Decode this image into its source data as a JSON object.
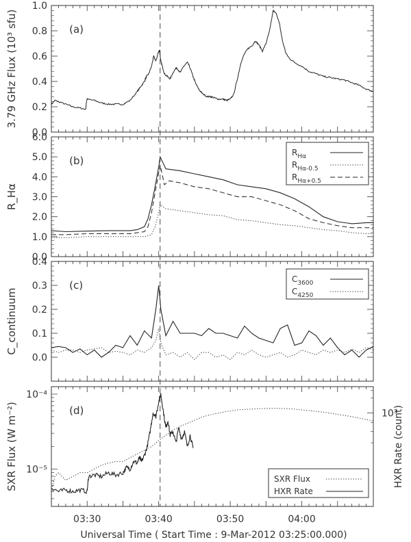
{
  "xaxis": {
    "ticks": [
      {
        "t": 5,
        "label": "03:30"
      },
      {
        "t": 15,
        "label": "03:40"
      },
      {
        "t": 25,
        "label": "03:50"
      },
      {
        "t": 35,
        "label": "04:00"
      }
    ],
    "xlim": [
      0,
      45
    ],
    "label": "Universal Time ( Start Time : 9-Mar-2012 03:25:00.000)"
  },
  "event_line_t": 15.2,
  "chart_data": [
    {
      "panel": "(a)",
      "type": "line",
      "ylabel": "3.79 GHz Flux (10³ sfu)",
      "ylim": [
        0,
        1.0
      ],
      "yticks": [
        "0.0",
        "0.2",
        "0.4",
        "0.6",
        "0.8",
        "1.0"
      ],
      "series": [
        {
          "x": [
            0,
            0.5,
            1,
            2,
            3,
            4,
            4.8,
            4.9,
            5,
            6,
            7,
            8,
            9,
            10,
            11,
            12,
            12.5,
            13,
            13.3,
            13.6,
            14,
            14.3,
            14.6,
            14.9,
            15.1,
            15.3,
            15.5,
            15.8,
            16.2,
            16.6,
            17,
            17.5,
            18,
            18.5,
            19,
            19.3,
            19.8,
            20.2,
            20.7,
            21.2,
            21.8,
            22.3,
            22.8,
            23.3,
            24,
            24.5,
            25,
            25.5,
            26,
            26.5,
            27,
            27.5,
            28,
            28.5,
            29,
            29.5,
            30,
            30.5,
            31,
            31.5,
            31.9,
            32.3,
            32.8,
            33.3,
            34,
            35,
            36,
            37,
            38,
            39,
            40,
            41,
            42,
            43,
            44,
            45
          ],
          "values": [
            0.22,
            0.25,
            0.24,
            0.22,
            0.2,
            0.19,
            0.18,
            0.24,
            0.26,
            0.25,
            0.23,
            0.22,
            0.22,
            0.22,
            0.25,
            0.32,
            0.36,
            0.4,
            0.44,
            0.46,
            0.52,
            0.6,
            0.56,
            0.62,
            0.65,
            0.56,
            0.52,
            0.46,
            0.44,
            0.42,
            0.47,
            0.51,
            0.47,
            0.52,
            0.55,
            0.52,
            0.44,
            0.38,
            0.33,
            0.3,
            0.28,
            0.28,
            0.27,
            0.26,
            0.26,
            0.25,
            0.26,
            0.3,
            0.42,
            0.55,
            0.62,
            0.66,
            0.68,
            0.72,
            0.69,
            0.64,
            0.7,
            0.8,
            0.96,
            0.93,
            0.85,
            0.72,
            0.62,
            0.58,
            0.55,
            0.52,
            0.48,
            0.46,
            0.44,
            0.43,
            0.42,
            0.41,
            0.39,
            0.37,
            0.34,
            0.32
          ]
        }
      ]
    },
    {
      "panel": "(b)",
      "type": "line",
      "ylabel": "R_Hα",
      "ylim": [
        0,
        6.0
      ],
      "yticks": [
        "0.0",
        "1.0",
        "2.0",
        "3.0",
        "4.0",
        "5.0",
        "6.0"
      ],
      "legend": [
        "R_Hα",
        "R_Hα-0.5",
        "R_Hα+0.5"
      ],
      "series": [
        {
          "name": "R_Hα",
          "style": "solid",
          "x": [
            0,
            2,
            5,
            8,
            11,
            12,
            13,
            13.5,
            14,
            14.5,
            15,
            15.2,
            16,
            18,
            20,
            22,
            24,
            26,
            28,
            30,
            32,
            34,
            36,
            38,
            40,
            42,
            44,
            45
          ],
          "values": [
            1.3,
            1.25,
            1.28,
            1.3,
            1.3,
            1.35,
            1.5,
            1.9,
            2.6,
            3.5,
            4.5,
            5.0,
            4.4,
            4.3,
            4.15,
            4.0,
            3.85,
            3.6,
            3.5,
            3.4,
            3.2,
            2.9,
            2.5,
            2.0,
            1.75,
            1.65,
            1.7,
            1.7
          ]
        },
        {
          "name": "R_Hα-0.5",
          "style": "dotted",
          "x": [
            0,
            2,
            5,
            8,
            11,
            12,
            13,
            14,
            14.5,
            15,
            15.2,
            16,
            18,
            20,
            22,
            24,
            26,
            28,
            30,
            32,
            34,
            36,
            38,
            40,
            42,
            44,
            45
          ],
          "values": [
            0.95,
            0.95,
            1.0,
            1.0,
            1.0,
            1.0,
            1.0,
            1.1,
            1.5,
            2.2,
            2.6,
            2.4,
            2.3,
            2.2,
            2.1,
            2.05,
            1.85,
            1.8,
            1.7,
            1.6,
            1.55,
            1.45,
            1.35,
            1.3,
            1.2,
            1.15,
            1.15
          ]
        },
        {
          "name": "R_Hα+0.5",
          "style": "dashed",
          "x": [
            0,
            2,
            5,
            8,
            11,
            12,
            13,
            13.5,
            14,
            14.5,
            15,
            15.2,
            15.8,
            16.5,
            18,
            20,
            22,
            24,
            26,
            28,
            30,
            32,
            34,
            36,
            38,
            40,
            42,
            44,
            45
          ],
          "values": [
            1.1,
            1.1,
            1.15,
            1.15,
            1.15,
            1.2,
            1.25,
            1.5,
            2.2,
            3.2,
            4.2,
            4.6,
            3.6,
            3.8,
            3.7,
            3.5,
            3.4,
            3.2,
            3.0,
            3.0,
            2.8,
            2.6,
            2.3,
            1.9,
            1.7,
            1.55,
            1.45,
            1.45,
            1.45
          ]
        }
      ]
    },
    {
      "panel": "(c)",
      "type": "line",
      "ylabel": "C_continuum",
      "ylim": [
        -0.1,
        0.4
      ],
      "yticks": [
        "0.0",
        "0.1",
        "0.2",
        "0.3",
        "0.4"
      ],
      "legend": [
        "C_3600",
        "C_4250"
      ],
      "series": [
        {
          "name": "C_3600",
          "style": "solid",
          "x": [
            0,
            1,
            2,
            3,
            4,
            5,
            6,
            7,
            8,
            9,
            10,
            11,
            12,
            13,
            14,
            14.6,
            15,
            15.3,
            16,
            17,
            18,
            19,
            20,
            21,
            22,
            23,
            24,
            25,
            26,
            27,
            28,
            29,
            30,
            31,
            32,
            33,
            34,
            35,
            36,
            37,
            38,
            39,
            40,
            41,
            42,
            43,
            44,
            45
          ],
          "values": [
            0.04,
            0.045,
            0.04,
            0.02,
            0.035,
            0.01,
            0.03,
            0.0,
            0.02,
            0.05,
            0.04,
            0.09,
            0.05,
            0.11,
            0.08,
            0.2,
            0.3,
            0.2,
            0.09,
            0.15,
            0.1,
            0.1,
            0.1,
            0.09,
            0.12,
            0.1,
            0.1,
            0.09,
            0.08,
            0.13,
            0.1,
            0.08,
            0.07,
            0.06,
            0.12,
            0.135,
            0.05,
            0.06,
            0.11,
            0.09,
            0.05,
            0.08,
            0.04,
            0.01,
            0.03,
            0.0,
            0.03,
            0.045
          ]
        },
        {
          "name": "C_4250",
          "style": "dotted",
          "x": [
            0,
            1,
            2,
            3,
            4,
            5,
            6,
            7,
            8,
            9,
            10,
            11,
            12,
            13,
            14,
            14.6,
            15,
            15.3,
            16,
            17,
            18,
            19,
            20,
            21,
            22,
            23,
            24,
            25,
            26,
            27,
            28,
            29,
            30,
            31,
            32,
            33,
            34,
            35,
            36,
            37,
            38,
            39,
            40,
            41,
            42,
            43,
            44,
            45
          ],
          "values": [
            0.03,
            0.02,
            0.03,
            0.03,
            0.02,
            0.03,
            0.035,
            0.04,
            0.02,
            0.025,
            0.02,
            0.01,
            0.03,
            0.02,
            0.04,
            0.07,
            0.12,
            0.06,
            0.01,
            0.02,
            0.0,
            0.02,
            -0.01,
            0.02,
            0.02,
            0.0,
            0.01,
            -0.01,
            0.02,
            0.01,
            0.03,
            0.01,
            0.0,
            0.01,
            0.02,
            0.0,
            0.01,
            0.03,
            0.02,
            0.01,
            0.03,
            0.02,
            0.03,
            0.02,
            0.035,
            0.02,
            0.04,
            0.03
          ]
        }
      ]
    },
    {
      "panel": "(d)",
      "type": "line",
      "ylabel": "SXR Flux (W m⁻²)",
      "ylabel_right": "HXR Rate (count)",
      "ylog": true,
      "ylim_log10": [
        -5.5,
        -3.9
      ],
      "yticks_left": [
        "10⁻⁵",
        "10⁻⁴"
      ],
      "ytick_right": "10³",
      "legend": [
        "SXR Flux",
        "HXR Rate"
      ],
      "series": [
        {
          "name": "SXR Flux",
          "style": "dotted",
          "x": [
            0,
            0.5,
            1,
            1.5,
            2,
            3,
            4,
            5,
            6,
            7,
            8,
            9,
            10,
            11,
            12,
            13,
            14,
            15,
            16,
            17,
            18,
            19,
            20,
            21,
            22,
            24,
            26,
            28,
            30,
            32,
            34,
            36,
            38,
            40,
            42,
            44,
            45
          ],
          "log10_values": [
            -5.3,
            -5.1,
            -5.05,
            -5.1,
            -5.15,
            -5.1,
            -5.05,
            -5.05,
            -5.0,
            -4.95,
            -4.92,
            -4.9,
            -4.9,
            -4.85,
            -4.8,
            -4.75,
            -4.7,
            -4.62,
            -4.55,
            -4.48,
            -4.43,
            -4.39,
            -4.35,
            -4.31,
            -4.28,
            -4.24,
            -4.21,
            -4.2,
            -4.19,
            -4.19,
            -4.2,
            -4.22,
            -4.24,
            -4.27,
            -4.3,
            -4.34,
            -4.36
          ]
        },
        {
          "name": "HXR Rate",
          "style": "solid",
          "x": [
            0,
            1,
            2,
            3,
            4,
            5,
            5.2,
            6,
            7,
            8,
            9,
            10,
            10.5,
            11,
            11.5,
            12,
            12.3,
            12.6,
            13,
            13.4,
            13.8,
            14.2,
            14.6,
            15,
            15.3,
            15.6,
            16,
            16.3,
            16.6,
            17,
            17.4,
            17.8,
            18.2,
            18.6,
            19,
            19.4,
            19.8
          ],
          "log10_values": [
            -5.25,
            -5.3,
            -5.28,
            -5.3,
            -5.28,
            -5.3,
            -5.1,
            -5.08,
            -5.1,
            -5.05,
            -5.08,
            -5.05,
            -4.98,
            -5.0,
            -4.9,
            -4.92,
            -4.85,
            -4.9,
            -4.82,
            -4.7,
            -4.5,
            -4.25,
            -4.3,
            -4.1,
            -4.0,
            -4.2,
            -4.45,
            -4.35,
            -4.55,
            -4.5,
            -4.65,
            -4.45,
            -4.6,
            -4.5,
            -4.7,
            -4.55,
            -4.72
          ]
        }
      ]
    }
  ]
}
